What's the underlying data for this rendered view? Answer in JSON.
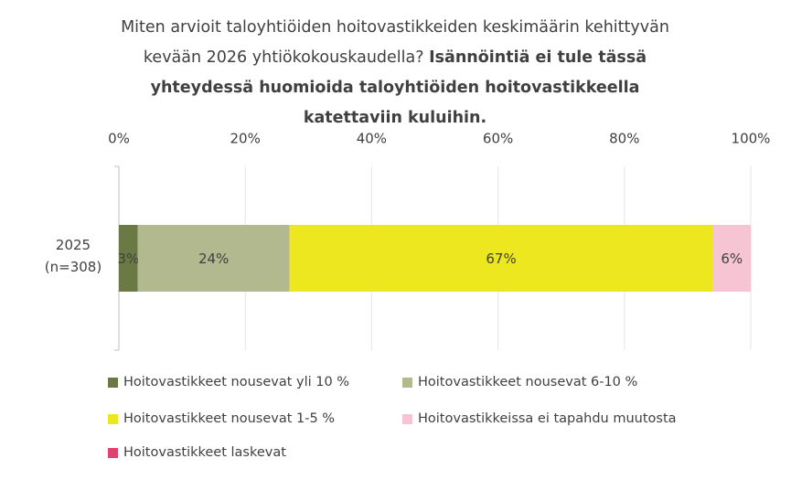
{
  "chart_data": {
    "type": "stacked-bar-horizontal",
    "title": "Miten arvioit taloyhtiöiden hoitovastikkeiden keskimäärin kehittyvän kevään 2026 yhtiökokouskaudella?",
    "subtitle": "Isännöintiä ei tule tässä yhteydessä huomioida taloyhtiöiden hoitovastikkeella katettaviin kuluihin.",
    "categories": [
      "2025 (n=308)"
    ],
    "series": [
      {
        "name": "Hoitovastikkeet nousevat yli 10 %",
        "color": "#6b7a45",
        "values": [
          3
        ],
        "value_labels": [
          "3%"
        ]
      },
      {
        "name": "Hoitovastikkeet nousevat 6-10 %",
        "color": "#b3b98e",
        "values": [
          24
        ],
        "value_labels": [
          "24%"
        ]
      },
      {
        "name": "Hoitovastikkeet nousevat 1-5 %",
        "color": "#ece71e",
        "values": [
          67
        ],
        "value_labels": [
          "67%"
        ]
      },
      {
        "name": "Hoitovastikkeissa ei tapahdu muutosta",
        "color": "#f7c4d4",
        "values": [
          6
        ],
        "value_labels": [
          "6%"
        ]
      },
      {
        "name": "Hoitovastikkeet laskevat",
        "color": "#e0416f",
        "values": [
          0
        ]
      }
    ],
    "xlim": [
      0,
      100
    ],
    "xticks": [
      {
        "value": 0,
        "label": "0%"
      },
      {
        "value": 20,
        "label": "20%"
      },
      {
        "value": 40,
        "label": "40%"
      },
      {
        "value": 60,
        "label": "60%"
      },
      {
        "value": 80,
        "label": "80%"
      },
      {
        "value": 100,
        "label": "100%"
      }
    ],
    "grid": true
  }
}
